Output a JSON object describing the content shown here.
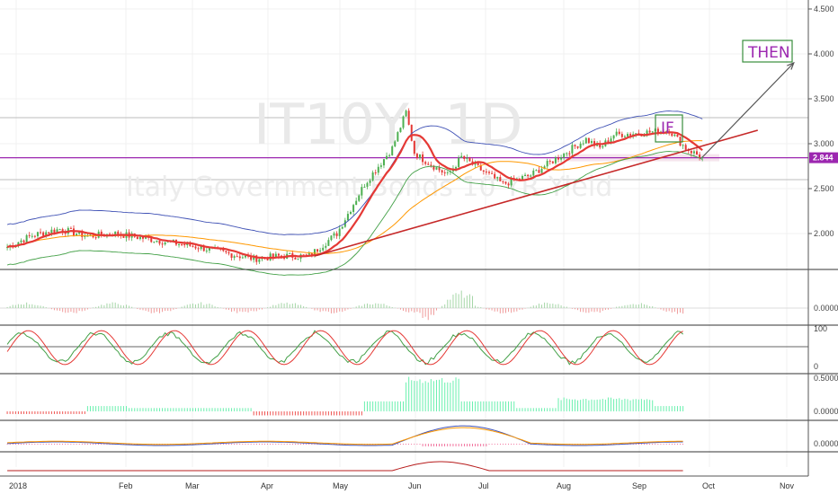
{
  "chart_data": {
    "type": "line",
    "symbol": "IT10Y",
    "interval": "1D",
    "description": "Italy Government Bonds 10 YR Yield",
    "last_price": "2.844",
    "annotations": [
      "IF",
      "THEN"
    ],
    "x_labels": [
      "2018",
      "Feb",
      "Mar",
      "Apr",
      "May",
      "Jun",
      "Jul",
      "Aug",
      "Sep",
      "Oct",
      "Nov"
    ],
    "price_axis": {
      "ticks": [
        "4.500",
        "4.000",
        "3.500",
        "3.000",
        "2.500",
        "2.000"
      ],
      "ylim": [
        1.5,
        4.6
      ]
    },
    "price_series": {
      "name": "close",
      "x": [
        1,
        10,
        20,
        30,
        40,
        50,
        60,
        70,
        80,
        90,
        100,
        110,
        120,
        130,
        140,
        145,
        148,
        150,
        155,
        160,
        165,
        170,
        180,
        190,
        200,
        210,
        215,
        220,
        230,
        240,
        246,
        250,
        252
      ],
      "values": [
        1.85,
        1.98,
        2.05,
        1.97,
        2.0,
        1.95,
        1.9,
        1.85,
        1.78,
        1.72,
        1.75,
        1.75,
        2.0,
        2.55,
        2.95,
        3.35,
        2.9,
        2.85,
        2.75,
        2.65,
        2.85,
        2.75,
        2.55,
        2.65,
        2.85,
        3.05,
        2.95,
        3.1,
        3.12,
        3.15,
        2.95,
        2.88,
        2.844
      ],
      "color": "#26a69a"
    },
    "baseline_fill": {
      "name": "2.844 level",
      "value": 2.844,
      "color": "#9c27b0"
    },
    "trend_line": {
      "from": [
        112,
        1.75
      ],
      "to": [
        272,
        3.15
      ],
      "color": "#c62828"
    },
    "projection": {
      "from": [
        252,
        2.85
      ],
      "to": [
        285,
        3.9
      ],
      "color": "#555555"
    },
    "panels": [
      {
        "name": "oscillator-1",
        "ticks": [
          "0.0000"
        ]
      },
      {
        "name": "stochastic",
        "ticks": [
          "100",
          "0"
        ]
      },
      {
        "name": "histogram",
        "ticks": [
          "0.5000",
          "0.0000"
        ]
      },
      {
        "name": "macd",
        "ticks": [
          "0.0000"
        ]
      },
      {
        "name": "volume-line",
        "ticks": []
      }
    ],
    "colors": {
      "up": "#4caf50",
      "down": "#e53935",
      "ma_red": "#e53935",
      "band_blue": "#3f51b5",
      "band_green": "#43a047",
      "ma_orange": "#ff9800"
    }
  }
}
